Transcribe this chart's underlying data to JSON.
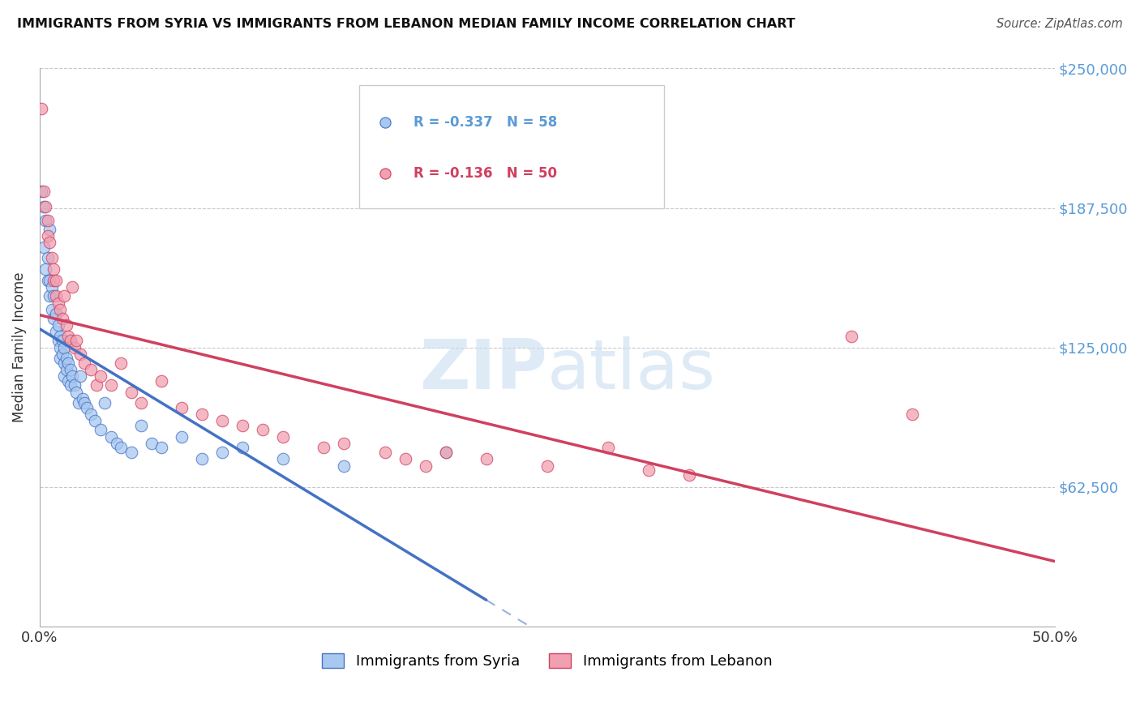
{
  "title": "IMMIGRANTS FROM SYRIA VS IMMIGRANTS FROM LEBANON MEDIAN FAMILY INCOME CORRELATION CHART",
  "source": "Source: ZipAtlas.com",
  "ylabel": "Median Family Income",
  "xlim": [
    0.0,
    0.5
  ],
  "ylim": [
    0,
    250000
  ],
  "color_syria": "#A8C8F0",
  "color_lebanon": "#F0A0B0",
  "color_syria_line": "#4472C4",
  "color_lebanon_line": "#D04060",
  "R_syria": -0.337,
  "N_syria": 58,
  "R_lebanon": -0.136,
  "N_lebanon": 50,
  "legend_label_syria": "Immigrants from Syria",
  "legend_label_lebanon": "Immigrants from Lebanon",
  "background_color": "#FFFFFF",
  "grid_color": "#BBBBBB",
  "syria_x": [
    0.001,
    0.002,
    0.002,
    0.003,
    0.003,
    0.004,
    0.004,
    0.005,
    0.005,
    0.005,
    0.006,
    0.006,
    0.007,
    0.007,
    0.008,
    0.008,
    0.009,
    0.009,
    0.01,
    0.01,
    0.01,
    0.011,
    0.011,
    0.012,
    0.012,
    0.012,
    0.013,
    0.013,
    0.014,
    0.014,
    0.015,
    0.015,
    0.016,
    0.017,
    0.018,
    0.019,
    0.02,
    0.021,
    0.022,
    0.023,
    0.025,
    0.027,
    0.03,
    0.032,
    0.035,
    0.038,
    0.04,
    0.045,
    0.05,
    0.055,
    0.06,
    0.07,
    0.08,
    0.09,
    0.1,
    0.12,
    0.15,
    0.2
  ],
  "syria_y": [
    195000,
    188000,
    170000,
    182000,
    160000,
    165000,
    155000,
    155000,
    148000,
    178000,
    152000,
    142000,
    148000,
    138000,
    140000,
    132000,
    135000,
    128000,
    130000,
    125000,
    120000,
    128000,
    122000,
    125000,
    118000,
    112000,
    120000,
    115000,
    118000,
    110000,
    115000,
    108000,
    112000,
    108000,
    105000,
    100000,
    112000,
    102000,
    100000,
    98000,
    95000,
    92000,
    88000,
    100000,
    85000,
    82000,
    80000,
    78000,
    90000,
    82000,
    80000,
    85000,
    75000,
    78000,
    80000,
    75000,
    72000,
    78000
  ],
  "lebanon_x": [
    0.001,
    0.002,
    0.003,
    0.004,
    0.004,
    0.005,
    0.006,
    0.007,
    0.007,
    0.008,
    0.008,
    0.009,
    0.01,
    0.011,
    0.012,
    0.013,
    0.014,
    0.015,
    0.016,
    0.017,
    0.018,
    0.02,
    0.022,
    0.025,
    0.028,
    0.03,
    0.035,
    0.04,
    0.045,
    0.05,
    0.06,
    0.07,
    0.08,
    0.09,
    0.1,
    0.11,
    0.12,
    0.14,
    0.15,
    0.17,
    0.18,
    0.19,
    0.2,
    0.22,
    0.25,
    0.28,
    0.3,
    0.32,
    0.4,
    0.43
  ],
  "lebanon_y": [
    232000,
    195000,
    188000,
    182000,
    175000,
    172000,
    165000,
    160000,
    155000,
    155000,
    148000,
    145000,
    142000,
    138000,
    148000,
    135000,
    130000,
    128000,
    152000,
    125000,
    128000,
    122000,
    118000,
    115000,
    108000,
    112000,
    108000,
    118000,
    105000,
    100000,
    110000,
    98000,
    95000,
    92000,
    90000,
    88000,
    85000,
    80000,
    82000,
    78000,
    75000,
    72000,
    78000,
    75000,
    72000,
    80000,
    70000,
    68000,
    130000,
    95000
  ]
}
